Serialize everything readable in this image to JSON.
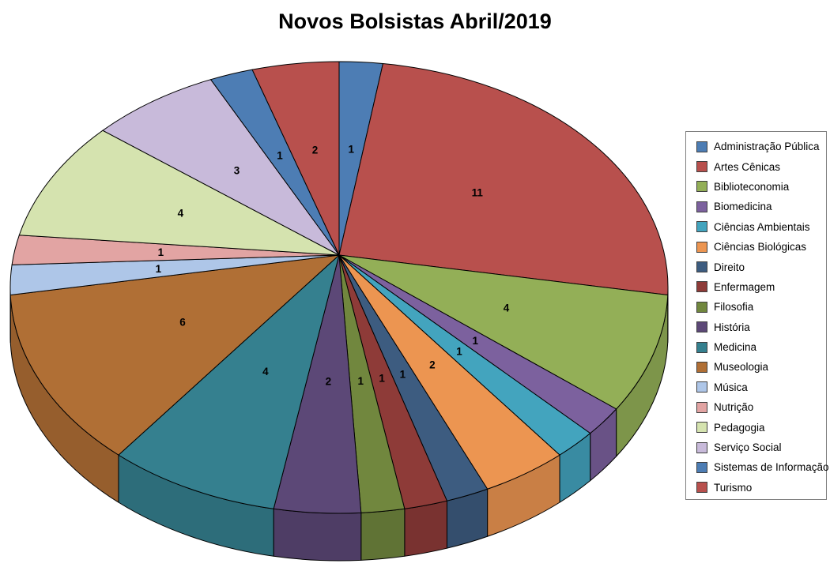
{
  "title": "Novos Bolsistas Abril/2019",
  "chart_data": {
    "type": "pie",
    "style": "3d",
    "title": "Novos Bolsistas Abril/2019",
    "direction": "clockwise",
    "start_angle_deg": 0,
    "total": 47,
    "data_labels": "value",
    "legend_position": "right",
    "categories": [
      "Administração Pública",
      "Artes Cênicas",
      "Biblioteconomia",
      "Biomedicina",
      "Ciências Ambientais",
      "Ciências Biológicas",
      "Direito",
      "Enfermagem",
      "Filosofia",
      "História",
      "Medicina",
      "Museologia",
      "Música",
      "Nutrição",
      "Pedagogia",
      "Serviço Social",
      "Sistemas de Informação",
      "Turismo"
    ],
    "values": [
      1,
      11,
      4,
      1,
      1,
      2,
      1,
      1,
      1,
      2,
      4,
      6,
      1,
      1,
      4,
      3,
      1,
      2
    ],
    "colors": [
      "#4D7DB4",
      "#B8504D",
      "#93AF57",
      "#7C619E",
      "#43A4BE",
      "#EC9551",
      "#3D5C80",
      "#8E3B38",
      "#71873E",
      "#5C4877",
      "#35808F",
      "#B06F35",
      "#AEC6E8",
      "#E2A4A3",
      "#D5E3AF",
      "#C8BADA",
      "#4D7DB4",
      "#B8504D"
    ],
    "label_color": "#000000",
    "slice_border_color": "#000000"
  }
}
